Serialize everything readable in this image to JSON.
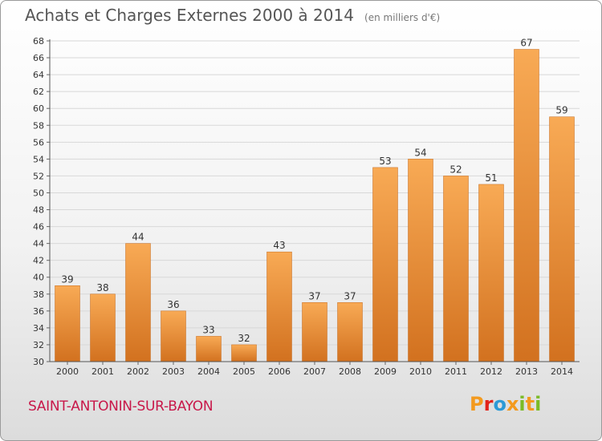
{
  "header": {
    "title": "Achats et Charges Externes 2000 à 2014",
    "subtitle": "(en milliers d'€)"
  },
  "footer": {
    "commune": "SAINT-ANTONIN-SUR-BAYON",
    "logo_text": "Proxiti"
  },
  "colors": {
    "bar_light": "#f8aa55",
    "bar_dark": "#d2711f",
    "commune_text": "#c8184a",
    "logo_letters": [
      "#f39a1e",
      "#e2231a",
      "#2c9ad6",
      "#f39a1e",
      "#7bbb26",
      "#f39a1e",
      "#7bbb26"
    ]
  },
  "chart_data": {
    "type": "bar",
    "title": "Achats et Charges Externes 2000 à 2014",
    "subtitle": "(en milliers d'€)",
    "xlabel": "",
    "ylabel": "",
    "categories": [
      "2000",
      "2001",
      "2002",
      "2003",
      "2004",
      "2005",
      "2006",
      "2007",
      "2008",
      "2009",
      "2010",
      "2011",
      "2012",
      "2013",
      "2014"
    ],
    "values": [
      39,
      38,
      44,
      36,
      33,
      32,
      43,
      37,
      37,
      53,
      54,
      52,
      51,
      67,
      59
    ],
    "ylim": [
      30,
      68
    ],
    "yticks": [
      30,
      32,
      34,
      36,
      38,
      40,
      42,
      44,
      46,
      48,
      50,
      52,
      54,
      56,
      58,
      60,
      62,
      64,
      66,
      68
    ],
    "grid": true,
    "data_labels": true
  }
}
